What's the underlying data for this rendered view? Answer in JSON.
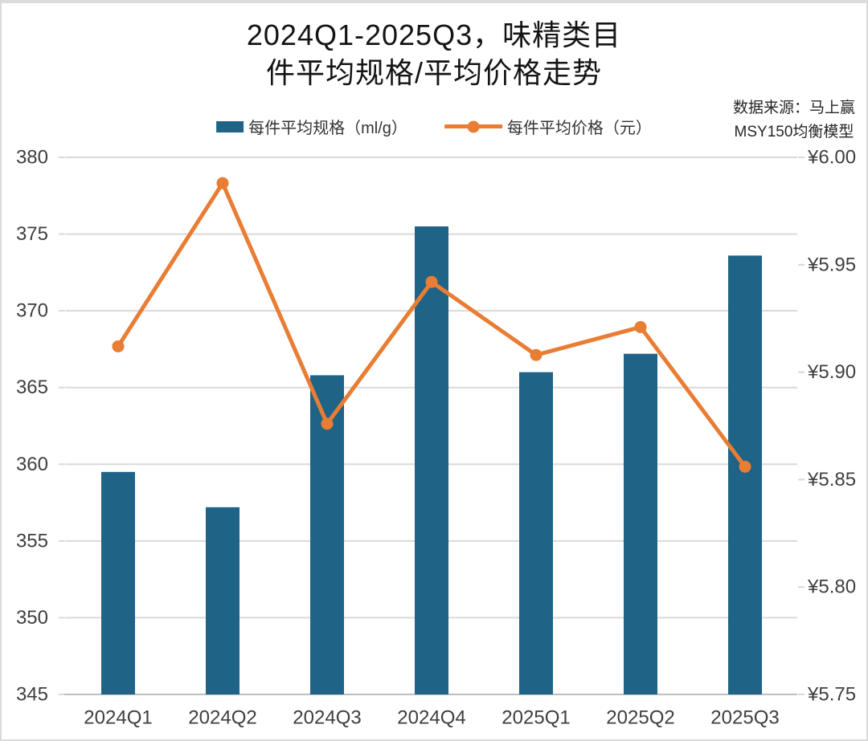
{
  "title": {
    "line1": "2024Q1-2025Q3，味精类目",
    "line2": "件平均规格/平均价格走势"
  },
  "source": {
    "line1": "数据来源：马上赢",
    "line2": "MSY150均衡模型"
  },
  "legend": [
    {
      "label": "每件平均规格（ml/g）",
      "marker": "bar-swatch",
      "color": "#1F6387"
    },
    {
      "label": "每件平均价格（元）",
      "marker": "line-dot",
      "color": "#E87D33"
    }
  ],
  "colors": {
    "bar": "#1F6387",
    "line": "#E87D33",
    "gridline": "#D9D9D9",
    "axis_line": "#BEBEBE",
    "tick_text": "#3F3F3F"
  },
  "chart_data": {
    "type": "bar",
    "subtype": "bar+line dual-axis combo",
    "title": "2024Q1-2025Q3，味精类目件平均规格/平均价格走势",
    "categories": [
      "2024Q1",
      "2024Q2",
      "2024Q3",
      "2024Q4",
      "2025Q1",
      "2025Q2",
      "2025Q3"
    ],
    "series": [
      {
        "name": "每件平均规格（ml/g）",
        "type": "bar",
        "axis": "left",
        "unit": "ml/g",
        "color": "#1F6387",
        "values": [
          359.5,
          357.2,
          365.8,
          375.5,
          366.0,
          367.2,
          373.6
        ]
      },
      {
        "name": "每件平均价格（元）",
        "type": "line",
        "axis": "right",
        "unit": "元",
        "color": "#E87D33",
        "values": [
          5.912,
          5.988,
          5.876,
          5.942,
          5.908,
          5.921,
          5.856
        ]
      }
    ],
    "left_axis": {
      "min": 345,
      "max": 380,
      "step": 5,
      "tick_labels": [
        "380",
        "375",
        "370",
        "365",
        "360",
        "355",
        "350",
        "345"
      ]
    },
    "right_axis": {
      "min": 5.75,
      "max": 6.0,
      "step": 0.05,
      "tick_labels": [
        "¥6.00",
        "¥5.95",
        "¥5.90",
        "¥5.85",
        "¥5.80",
        "¥5.75"
      ]
    },
    "grid": "horizontal gridlines on",
    "legend_position": "top-center"
  }
}
